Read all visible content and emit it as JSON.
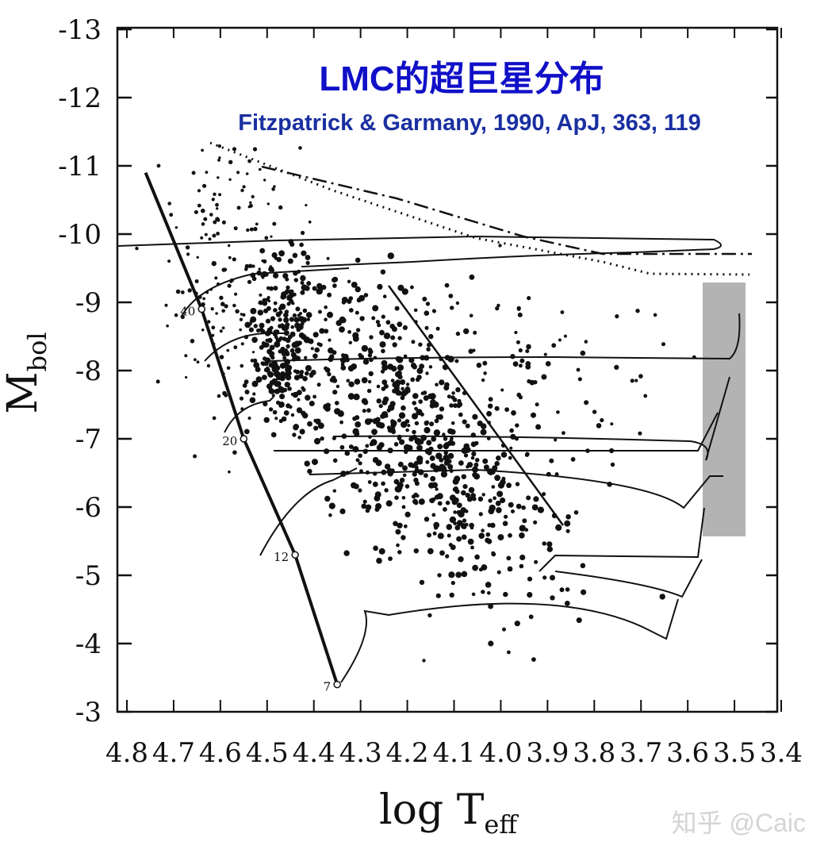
{
  "chart_data": {
    "type": "scatter",
    "title": "LMC的超巨星分布",
    "subtitle": "Fitzpatrick & Garmany, 1990, ApJ, 363, 119",
    "xlabel": "log T",
    "xlabel_sub": "eff",
    "ylabel": "M",
    "ylabel_sub": "bol",
    "xlim": [
      4.8,
      3.4
    ],
    "ylim": [
      -3,
      -13
    ],
    "x_ticks": [
      "4.8",
      "4.7",
      "4.6",
      "4.5",
      "4.4",
      "4.3",
      "4.2",
      "4.1",
      "4.0",
      "3.9",
      "3.8",
      "3.7",
      "3.6",
      "3.5",
      "3.4"
    ],
    "y_ticks": [
      "-13",
      "-12",
      "-11",
      "-10",
      "-9",
      "-8",
      "-7",
      "-6",
      "-5",
      "-4",
      "-3"
    ],
    "track_mass_labels": [
      "40",
      "20",
      "12",
      "7"
    ],
    "zams_points": [
      {
        "x": 4.76,
        "y": -10.9
      },
      {
        "x": 4.64,
        "y": -8.9
      },
      {
        "x": 4.55,
        "y": -7.0
      },
      {
        "x": 4.44,
        "y": -5.3
      },
      {
        "x": 4.35,
        "y": -3.4
      }
    ],
    "track_endpoints": [
      {
        "x": 4.64,
        "y": -8.9,
        "label": "40"
      },
      {
        "x": 4.55,
        "y": -7.0,
        "label": "20"
      },
      {
        "x": 4.44,
        "y": -5.3,
        "label": "12"
      },
      {
        "x": 4.35,
        "y": -3.4,
        "label": "7"
      }
    ]
  },
  "watermark": "知乎 @Caic",
  "colors": {
    "title": "#1010c8",
    "subtitle": "#1a2fa0",
    "ink": "#111111",
    "watermark": "#d8d8d8",
    "shade": "#9a9a9a"
  }
}
